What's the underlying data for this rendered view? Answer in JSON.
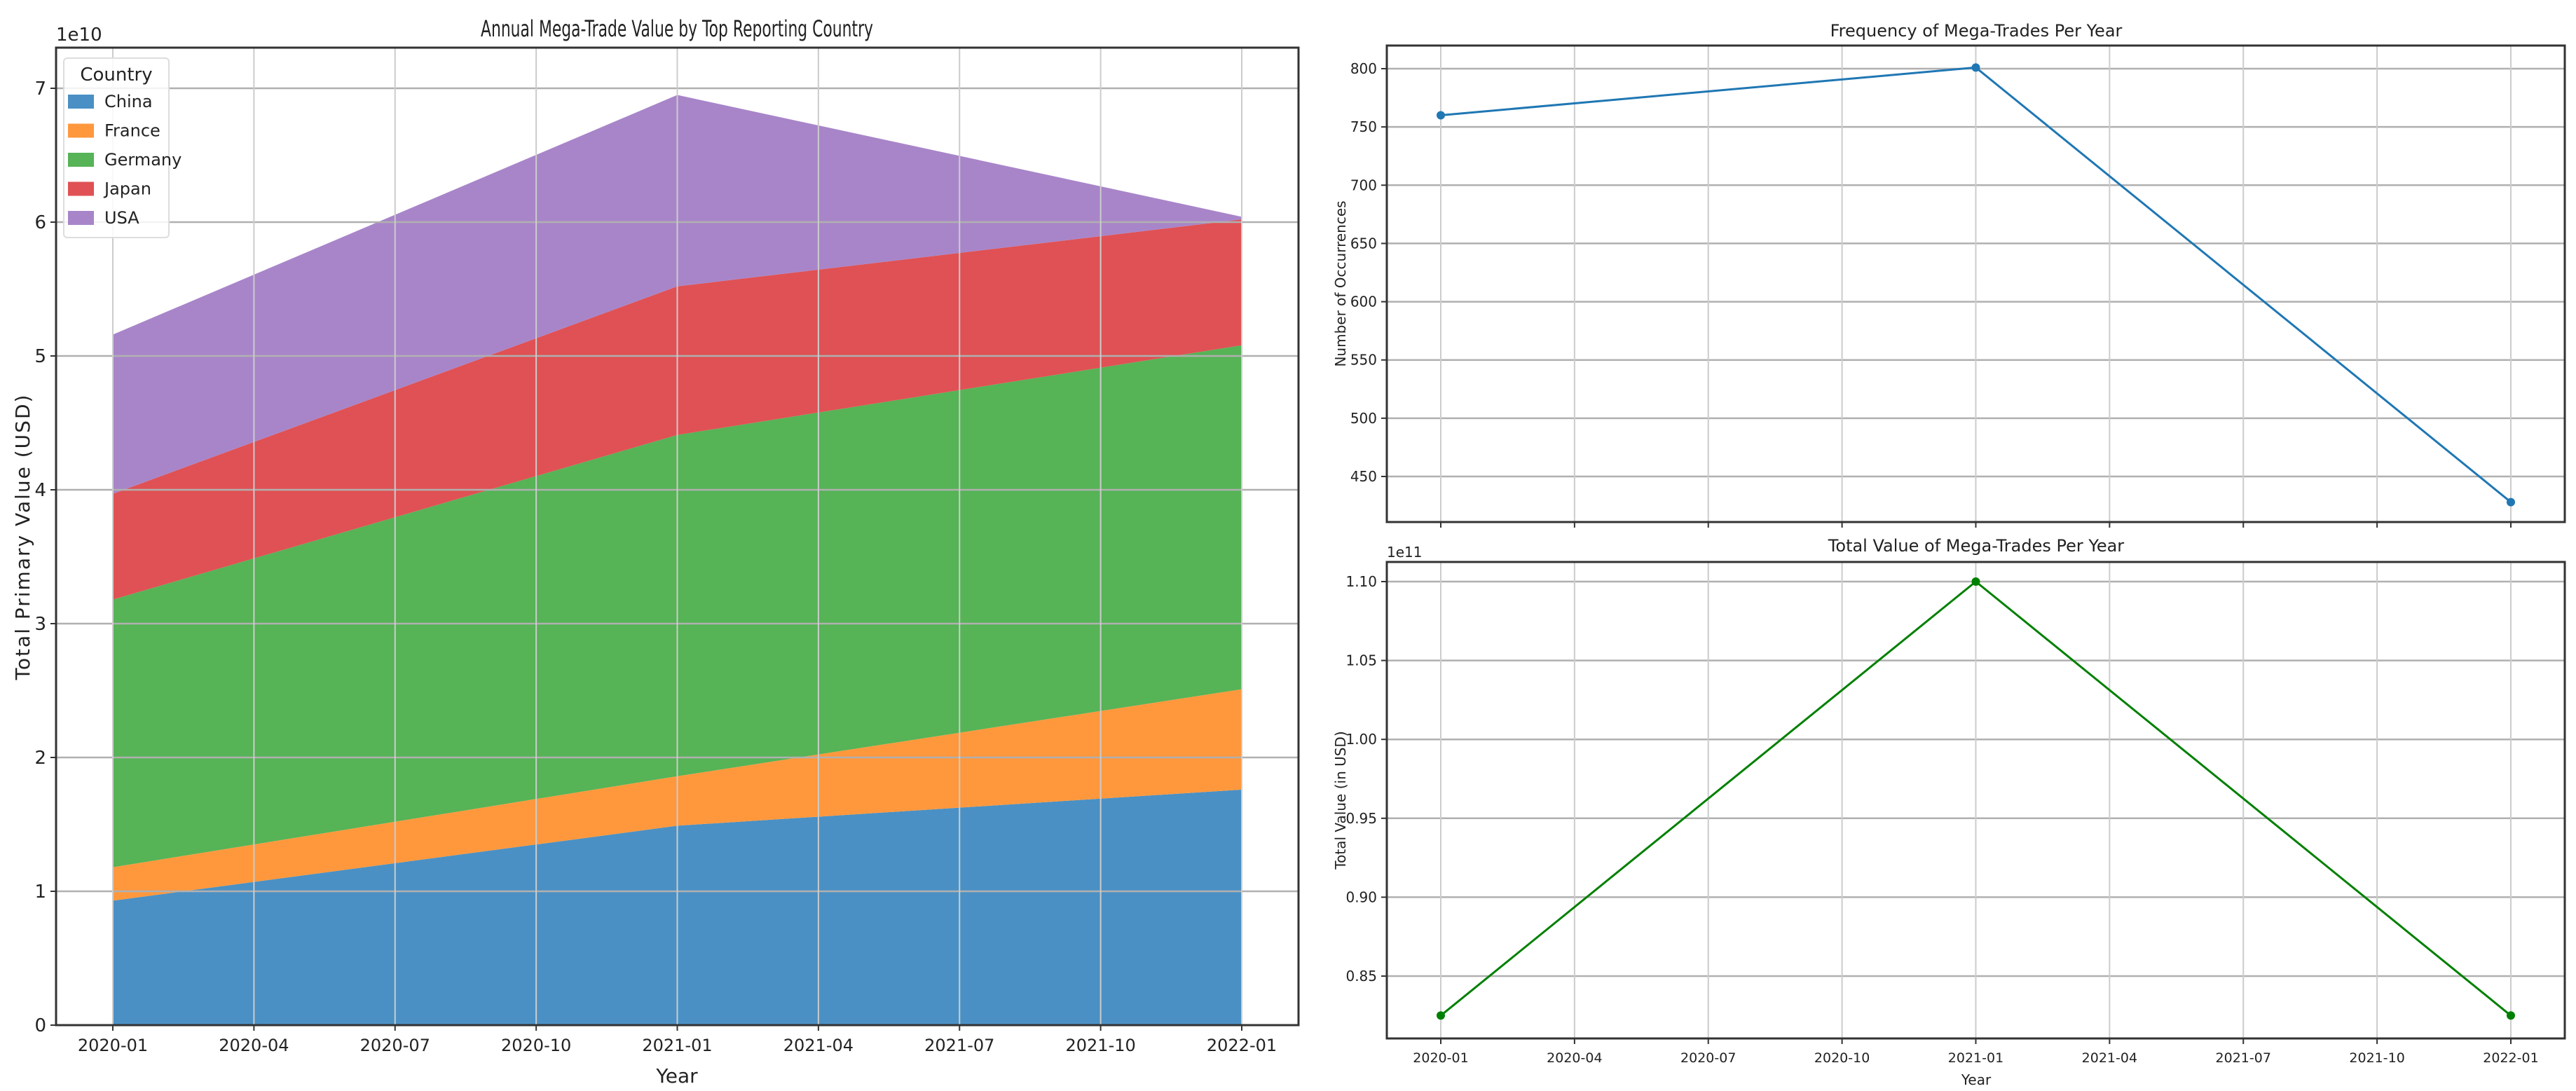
{
  "chart_data": [
    {
      "type": "area",
      "stacked": true,
      "title": "Annual Mega-Trade Value by Top Reporting Country",
      "xlabel": "Year",
      "ylabel": "Total Primary Value (USD)",
      "y_offset_label": "1e10",
      "x": [
        "2020-01",
        "2021-01",
        "2022-01"
      ],
      "x_ticks": [
        "2020-01",
        "2020-04",
        "2020-07",
        "2020-10",
        "2021-01",
        "2021-04",
        "2021-07",
        "2021-10",
        "2022-01"
      ],
      "y_ticks": [
        "0",
        "1",
        "2",
        "3",
        "4",
        "5",
        "6",
        "7"
      ],
      "ylim": [
        0,
        7.3
      ],
      "grid": true,
      "legend": {
        "title": "Country",
        "position": "upper left"
      },
      "series": [
        {
          "name": "China",
          "color": "#4a90c4",
          "values": [
            0.93,
            1.49,
            1.76
          ]
        },
        {
          "name": "France",
          "color": "#ff983d",
          "values": [
            0.25,
            0.37,
            0.75
          ]
        },
        {
          "name": "Germany",
          "color": "#56b356",
          "values": [
            2.0,
            2.55,
            2.57
          ]
        },
        {
          "name": "Japan",
          "color": "#df5154",
          "values": [
            0.79,
            1.11,
            0.94
          ]
        },
        {
          "name": "USA",
          "color": "#a885c9",
          "values": [
            1.19,
            1.43,
            0.02
          ]
        }
      ],
      "units": "x 1e10 USD"
    },
    {
      "type": "line",
      "title": "Frequency of Mega-Trades Per Year",
      "xlabel": "",
      "ylabel": "Number of Occurrences",
      "x": [
        "2020-01",
        "2021-01",
        "2022-01"
      ],
      "x_ticks": [
        "2020-01",
        "2020-04",
        "2020-07",
        "2020-10",
        "2021-01",
        "2021-04",
        "2021-07",
        "2021-10",
        "2022-01"
      ],
      "y_ticks": [
        "450",
        "500",
        "550",
        "600",
        "650",
        "700",
        "750",
        "800"
      ],
      "ylim": [
        408,
        820
      ],
      "grid": true,
      "series": [
        {
          "name": "Frequency",
          "color": "#1f77b4",
          "values": [
            760,
            801,
            428
          ]
        }
      ]
    },
    {
      "type": "line",
      "title": "Total Value of Mega-Trades Per Year",
      "xlabel": "Year",
      "ylabel": "Total Value (in USD)",
      "y_offset_label": "1e11",
      "x": [
        "2020-01",
        "2021-01",
        "2022-01"
      ],
      "x_ticks": [
        "2020-01",
        "2020-04",
        "2020-07",
        "2020-10",
        "2021-01",
        "2021-04",
        "2021-07",
        "2021-10",
        "2022-01"
      ],
      "y_ticks": [
        "0.85",
        "0.90",
        "0.95",
        "1.00",
        "1.05",
        "1.10"
      ],
      "ylim": [
        0.8125,
        1.1125
      ],
      "grid": true,
      "series": [
        {
          "name": "Total Value",
          "color": "#008000",
          "values": [
            0.825,
            1.1,
            0.825
          ]
        }
      ],
      "units": "x 1e11 USD"
    }
  ]
}
